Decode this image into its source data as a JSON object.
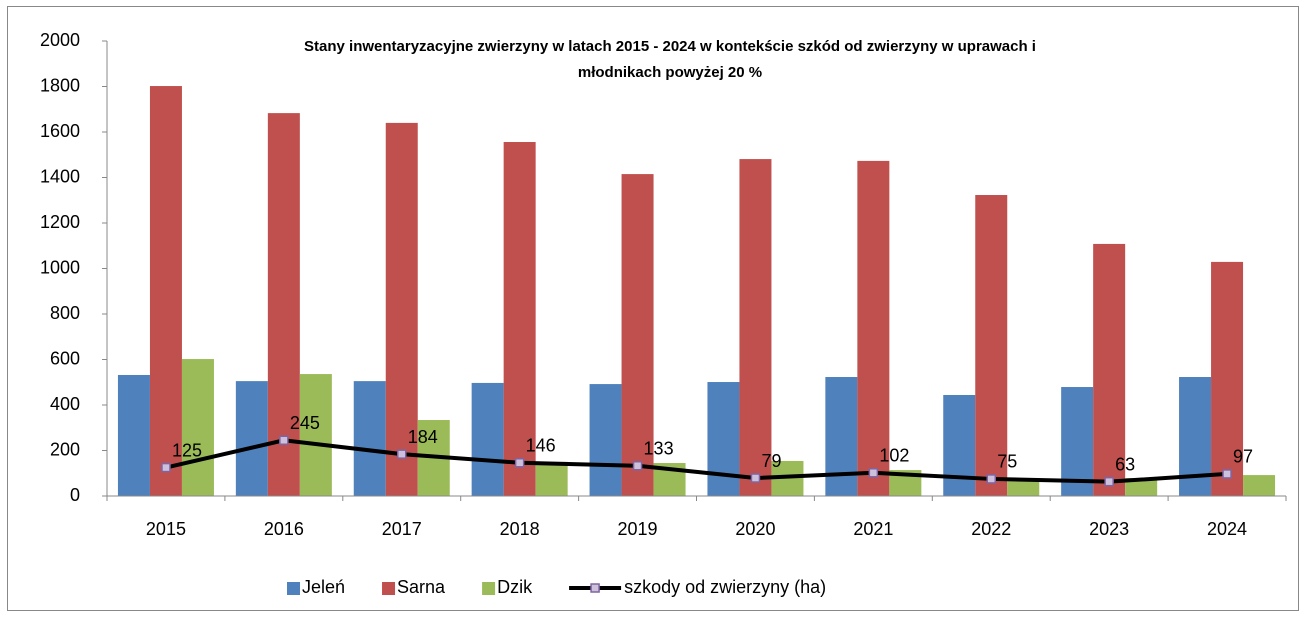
{
  "chart_data": {
    "type": "bar",
    "title": [
      "Stany inwentaryzacyjne zwierzyny w latach 2015 - 2024 w kontekście szkód od zwierzyny w uprawach i",
      "młodnikach powyżej 20 %"
    ],
    "categories": [
      "2015",
      "2016",
      "2017",
      "2018",
      "2019",
      "2020",
      "2021",
      "2022",
      "2023",
      "2024"
    ],
    "series": [
      {
        "name": "Jeleń",
        "color": "#4f81bd",
        "type": "bar",
        "values": [
          532,
          505,
          505,
          497,
          492,
          501,
          523,
          444,
          479,
          523
        ]
      },
      {
        "name": "Sarna",
        "color": "#c0504d",
        "type": "bar",
        "values": [
          1802,
          1683,
          1640,
          1556,
          1415,
          1481,
          1473,
          1323,
          1108,
          1029
        ]
      },
      {
        "name": "Dzik",
        "color": "#9bbb59",
        "type": "bar",
        "values": [
          602,
          536,
          334,
          150,
          145,
          154,
          114,
          79,
          79,
          92
        ]
      },
      {
        "name": "szkody od zwierzyny (ha)",
        "color": "#000000",
        "type": "line",
        "values": [
          125,
          245,
          184,
          146,
          133,
          79,
          102,
          75,
          63,
          97
        ]
      }
    ],
    "ylim": [
      0,
      2000
    ],
    "yticks": [
      0,
      200,
      400,
      600,
      800,
      1000,
      1200,
      1400,
      1600,
      1800,
      2000
    ],
    "legend": "bottom",
    "grid": false
  }
}
